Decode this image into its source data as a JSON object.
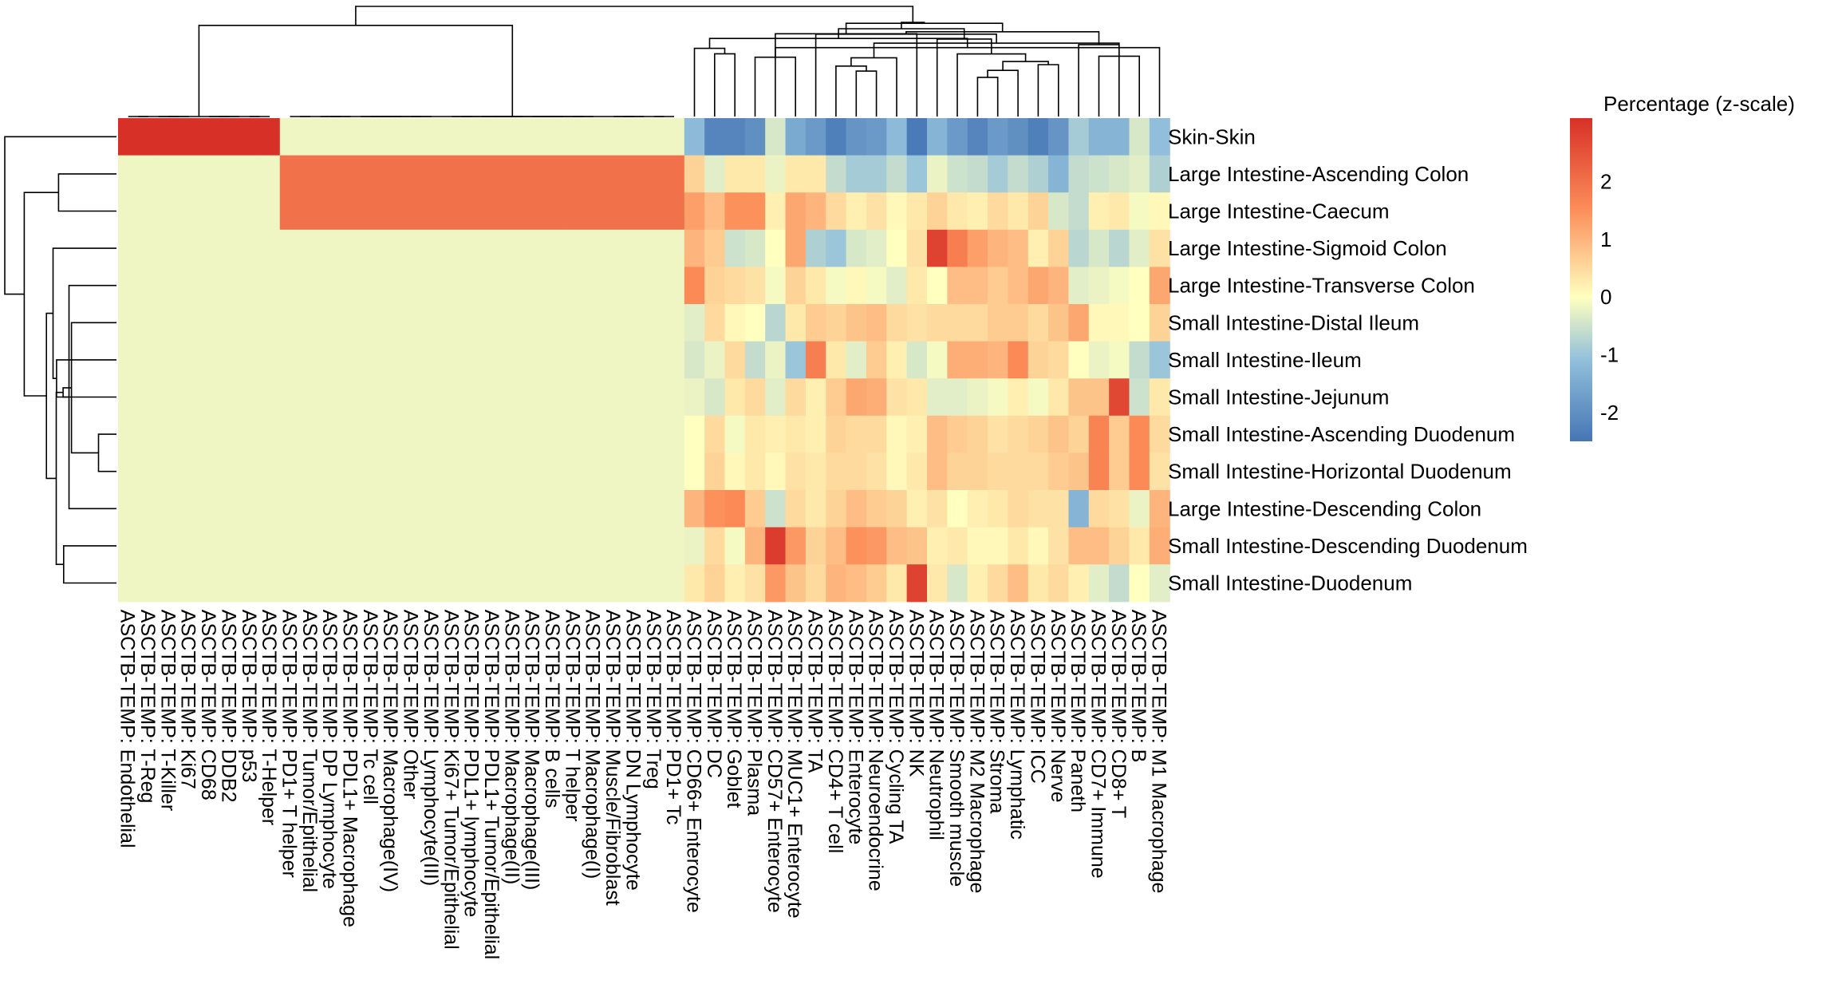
{
  "chart_data": {
    "type": "heatmap",
    "legend": {
      "title": "Percentage (z-scale)",
      "ticks": [
        2,
        1,
        0,
        -1,
        -2
      ],
      "range": [
        -2.5,
        3.1
      ],
      "placement": "right"
    },
    "colors": {
      "low": "#4575b4",
      "mid_low": "#91bfdb",
      "mid": "#ffffbf",
      "high_mid": "#fc8d59",
      "high": "#d73027"
    },
    "rows": [
      "Skin-Skin",
      "Large Intestine-Ascending Colon",
      "Large Intestine-Caecum",
      "Large Intestine-Sigmoid Colon",
      "Large Intestine-Transverse Colon",
      "Small Intestine-Distal Ileum",
      "Small Intestine-Ileum",
      "Small Intestine-Jejunum",
      "Small Intestine-Ascending Duodenum",
      "Small Intestine-Horizontal Duodenum",
      "Large Intestine-Descending Colon",
      "Small Intestine-Descending Duodenum",
      "Small Intestine-Duodenum"
    ],
    "columns": [
      "ASCTB-TEMP: Endothelial",
      "ASCTB-TEMP: T-Reg",
      "ASCTB-TEMP: T-Killer",
      "ASCTB-TEMP: Ki67",
      "ASCTB-TEMP: CD68",
      "ASCTB-TEMP: DDB2",
      "ASCTB-TEMP: p53",
      "ASCTB-TEMP: T-Helper",
      "ASCTB-TEMP: PD1+ T helper",
      "ASCTB-TEMP: Tumor/Epithelial",
      "ASCTB-TEMP: DP Lymphocyte",
      "ASCTB-TEMP: PDL1+ Macrophage",
      "ASCTB-TEMP: Tc cell",
      "ASCTB-TEMP: Macrophage(IV)",
      "ASCTB-TEMP: Other",
      "ASCTB-TEMP: Lymphocyte(III)",
      "ASCTB-TEMP: Ki67+ Tumor/Epithelial",
      "ASCTB-TEMP: PDL1+ lymphocyte",
      "ASCTB-TEMP: PDL1+ Tumor/Epithelial",
      "ASCTB-TEMP: Macrophage(II)",
      "ASCTB-TEMP: Macrophage(III)",
      "ASCTB-TEMP: B cells",
      "ASCTB-TEMP: T helper",
      "ASCTB-TEMP: Macrophage(I)",
      "ASCTB-TEMP: Muscle/Fibroblast",
      "ASCTB-TEMP: DN Lymphocyte",
      "ASCTB-TEMP: Treg",
      "ASCTB-TEMP: PD1+ Tc",
      "ASCTB-TEMP: CD66+ Enterocyte",
      "ASCTB-TEMP: DC",
      "ASCTB-TEMP: Goblet",
      "ASCTB-TEMP: Plasma",
      "ASCTB-TEMP: CD57+ Enterocyte",
      "ASCTB-TEMP: MUC1+ Enterocyte",
      "ASCTB-TEMP: TA",
      "ASCTB-TEMP: CD4+ T cell",
      "ASCTB-TEMP: Enterocyte",
      "ASCTB-TEMP: Neuroendocrine",
      "ASCTB-TEMP: Cycling TA",
      "ASCTB-TEMP: NK",
      "ASCTB-TEMP: Neutrophil",
      "ASCTB-TEMP: Smooth muscle",
      "ASCTB-TEMP: M2 Macrophage",
      "ASCTB-TEMP: Stroma",
      "ASCTB-TEMP: Lymphatic",
      "ASCTB-TEMP: ICC",
      "ASCTB-TEMP: Nerve",
      "ASCTB-TEMP: Paneth",
      "ASCTB-TEMP: CD7+ Immune",
      "ASCTB-TEMP: CD8+ T",
      "ASCTB-TEMP: B",
      "ASCTB-TEMP: M1 Macrophage"
    ],
    "block_values": {
      "skin_only_columns": [
        0,
        7
      ],
      "skin_only": {
        "Skin-Skin": 3.1,
        "other_rows": -0.15
      },
      "colon_only_columns": [
        8,
        27
      ],
      "colon_only": {
        "Large Intestine-Ascending Colon": 2.0,
        "Large Intestine-Caecum": 2.0,
        "other_rows": -0.15
      }
    },
    "values_cols_28_to_51": [
      [
        -1.2,
        -2.2,
        -2.2,
        -2.0,
        -0.4,
        -1.5,
        -1.8,
        -2.3,
        -1.9,
        -1.8,
        -1.2,
        -2.4,
        -1.3,
        -1.8,
        -2.2,
        -1.8,
        -2.0,
        -2.3,
        -1.9,
        -0.9,
        -1.3,
        -1.3,
        -0.4,
        -1.1
      ],
      [
        0.6,
        -0.3,
        0.3,
        0.3,
        -0.2,
        0.3,
        0.3,
        -0.6,
        -0.9,
        -0.9,
        -0.6,
        -1.0,
        -0.2,
        -0.5,
        -0.6,
        -0.9,
        -0.6,
        -0.8,
        -1.3,
        -0.6,
        -0.5,
        -0.4,
        -0.3,
        -0.8
      ],
      [
        1.3,
        0.9,
        1.5,
        1.5,
        0.2,
        1.2,
        1.0,
        0.5,
        0.2,
        0.4,
        0.1,
        0.3,
        0.6,
        0.3,
        0.2,
        0.5,
        0.3,
        0.6,
        -0.4,
        -0.6,
        0.2,
        0.3,
        -0.1,
        0.1
      ],
      [
        1.0,
        0.7,
        -0.5,
        -0.4,
        0.0,
        1.2,
        -0.8,
        -1.0,
        -0.4,
        -0.3,
        0.0,
        0.4,
        2.8,
        1.8,
        1.3,
        1.0,
        0.9,
        0.2,
        0.6,
        -0.7,
        -0.4,
        -0.7,
        -0.3,
        0.4
      ],
      [
        1.6,
        0.6,
        0.5,
        0.4,
        -0.1,
        0.6,
        0.3,
        -0.1,
        0.1,
        -0.1,
        -0.3,
        0.3,
        0.0,
        0.9,
        0.9,
        0.7,
        0.9,
        1.2,
        1.0,
        -0.3,
        -0.2,
        -0.1,
        0.0,
        1.2
      ],
      [
        -0.3,
        0.5,
        0.1,
        0.0,
        -0.7,
        0.3,
        0.7,
        0.6,
        0.8,
        0.9,
        0.5,
        0.4,
        0.5,
        0.5,
        0.5,
        0.7,
        0.7,
        0.5,
        0.8,
        1.2,
        0.1,
        0.1,
        0.0,
        0.6
      ],
      [
        -0.4,
        -0.2,
        0.5,
        -0.6,
        -0.2,
        -1.0,
        1.8,
        0.3,
        -0.3,
        0.7,
        0.2,
        -0.4,
        -0.1,
        1.1,
        1.1,
        1.0,
        1.6,
        0.6,
        0.5,
        0.0,
        -0.2,
        -0.1,
        -0.6,
        -1.0
      ],
      [
        -0.2,
        -0.4,
        0.3,
        0.5,
        -0.3,
        0.5,
        0.2,
        0.7,
        1.2,
        1.1,
        0.4,
        0.3,
        -0.3,
        -0.3,
        -0.2,
        -0.1,
        0.2,
        -0.1,
        0.3,
        0.8,
        0.8,
        2.7,
        -0.5,
        0.3
      ],
      [
        0.0,
        0.5,
        -0.1,
        0.3,
        0.2,
        0.3,
        0.2,
        0.6,
        0.5,
        0.5,
        0.1,
        0.2,
        0.9,
        0.7,
        0.6,
        0.4,
        0.5,
        0.6,
        0.8,
        0.6,
        1.7,
        0.7,
        1.6,
        0.5
      ],
      [
        0.0,
        0.6,
        0.1,
        0.3,
        0.1,
        0.4,
        0.3,
        0.5,
        0.5,
        0.4,
        0.1,
        0.3,
        0.9,
        0.6,
        0.6,
        0.5,
        0.5,
        0.5,
        0.7,
        0.8,
        1.7,
        0.7,
        1.6,
        0.4
      ],
      [
        1.0,
        1.5,
        1.6,
        0.7,
        -0.5,
        0.5,
        0.3,
        0.6,
        0.9,
        0.7,
        0.6,
        0.2,
        0.4,
        0.0,
        0.2,
        0.3,
        0.5,
        0.4,
        0.4,
        -1.3,
        0.5,
        0.4,
        -0.2,
        1.0
      ],
      [
        -0.2,
        0.5,
        -0.1,
        1.0,
        2.9,
        1.4,
        0.6,
        0.9,
        1.5,
        1.4,
        0.9,
        0.8,
        0.2,
        0.3,
        0.1,
        0.1,
        0.3,
        0.1,
        0.4,
        0.9,
        0.9,
        0.6,
        0.3,
        1.1
      ],
      [
        0.3,
        0.6,
        0.2,
        0.4,
        1.4,
        0.8,
        0.5,
        1.0,
        0.9,
        0.7,
        0.3,
        2.8,
        0.3,
        -0.4,
        0.2,
        0.5,
        0.9,
        0.3,
        0.5,
        0.2,
        -0.3,
        -0.6,
        0.0,
        -0.3
      ]
    ]
  }
}
